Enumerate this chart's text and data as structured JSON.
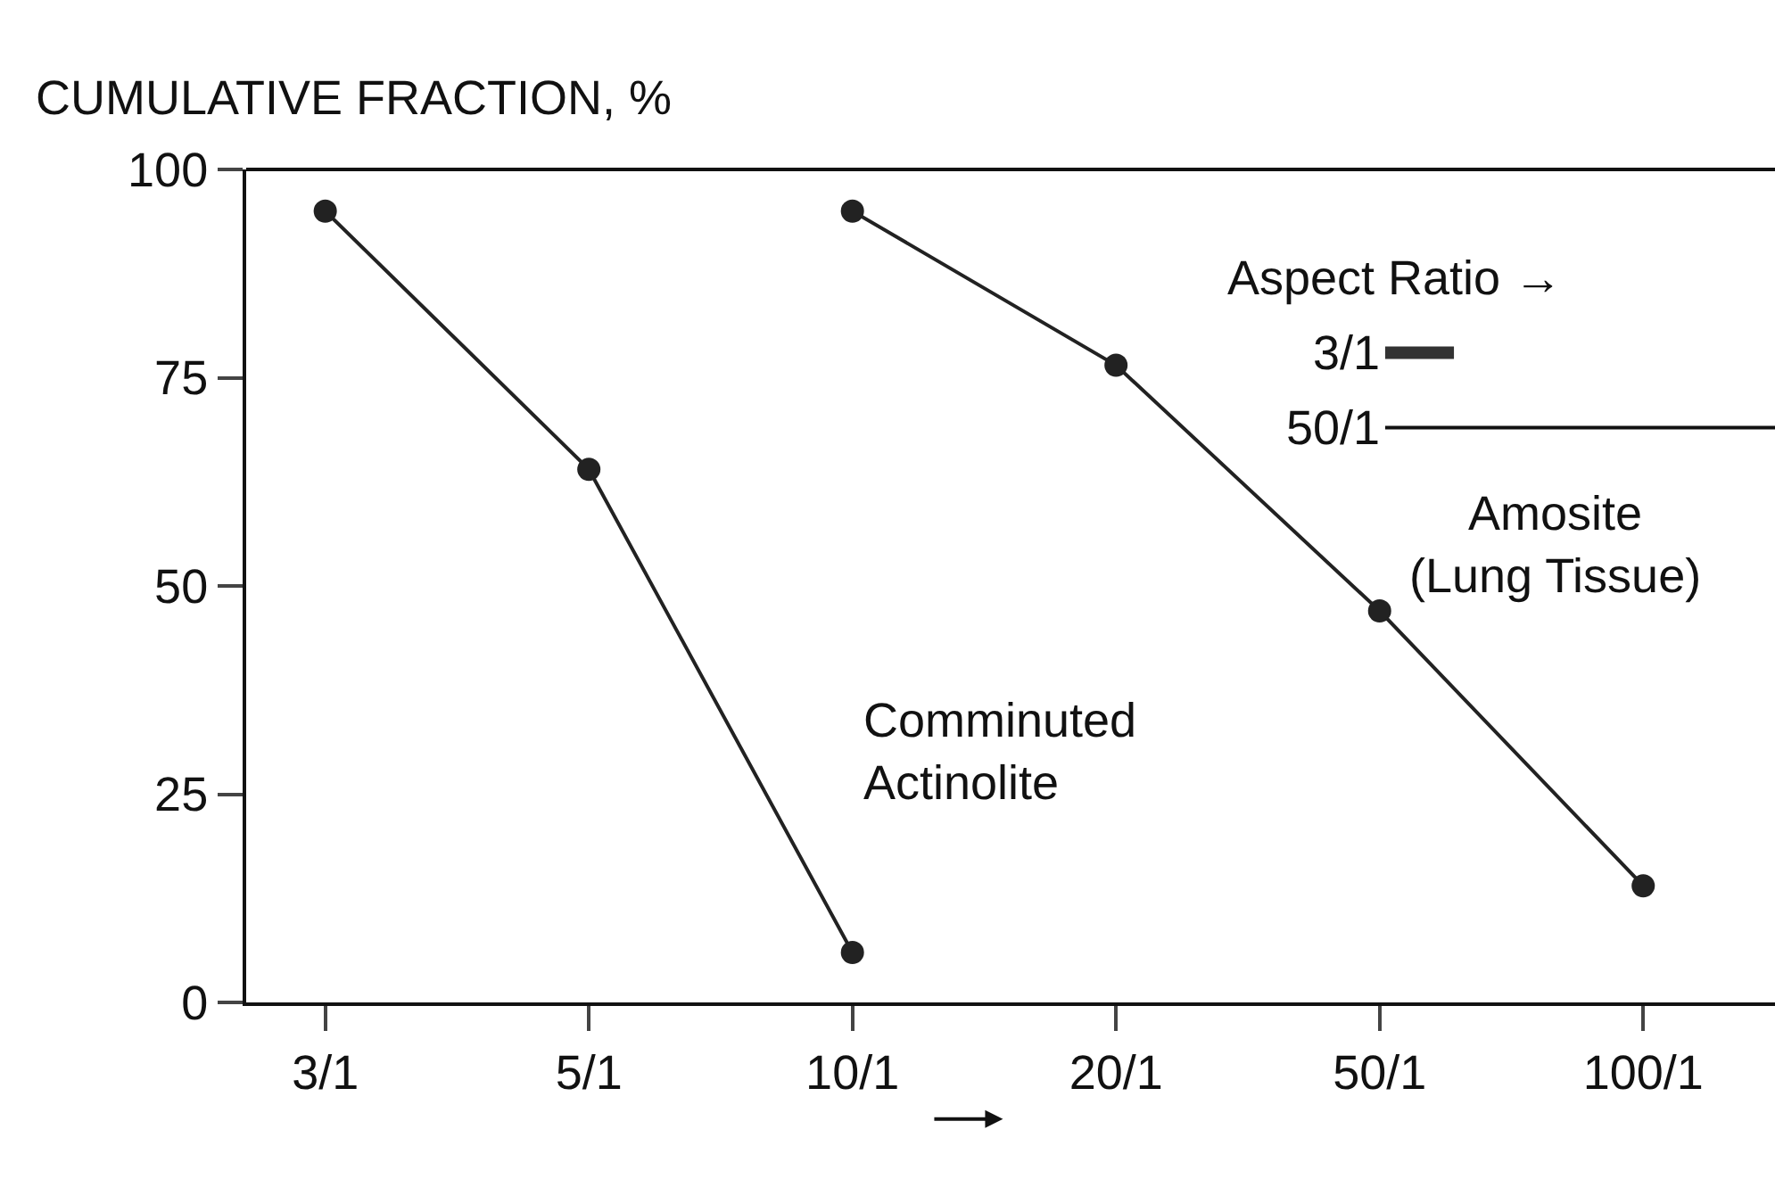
{
  "chart_data": {
    "type": "line",
    "ylabel": "CUMULATIVE FRACTION, %",
    "categories": [
      "3/1",
      "5/1",
      "10/1",
      "20/1",
      "50/1",
      "100/1"
    ],
    "ylim": [
      0,
      100
    ],
    "yticks": [
      0,
      25,
      50,
      75,
      100
    ],
    "legend": false,
    "marker": "circle",
    "line_style": "solid",
    "series": [
      {
        "name": "Comminuted Actinolite",
        "color": "#222222",
        "values": [
          95,
          64,
          6,
          null,
          null,
          null
        ]
      },
      {
        "name": "Amosite (Lung Tissue)",
        "color": "#222222",
        "values": [
          null,
          null,
          95,
          76.5,
          47,
          14
        ]
      }
    ],
    "annotations": [
      "Aspect Ratio →",
      "3/1",
      "50/1"
    ]
  }
}
